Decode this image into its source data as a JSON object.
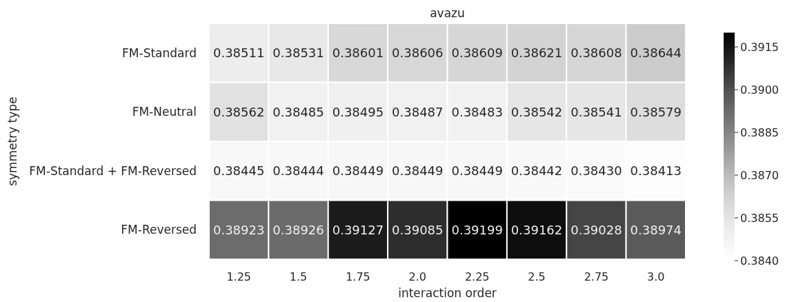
{
  "chart_data": {
    "type": "heatmap",
    "title": "avazu",
    "xlabel": "interaction order",
    "ylabel": "symmetry type",
    "categories": [
      "1.25",
      "1.5",
      "1.75",
      "2.0",
      "2.25",
      "2.5",
      "2.75",
      "3.0"
    ],
    "y_categories": [
      "FM-Standard",
      "FM-Neutral",
      "FM-Standard + FM-Reversed",
      "FM-Reversed"
    ],
    "cells": [
      [
        0.38511,
        0.38531,
        0.38601,
        0.38606,
        0.38609,
        0.38621,
        0.38608,
        0.38644
      ],
      [
        0.38562,
        0.38485,
        0.38495,
        0.38487,
        0.38483,
        0.38542,
        0.38541,
        0.38579
      ],
      [
        0.38445,
        0.38444,
        0.38449,
        0.38449,
        0.38449,
        0.38442,
        0.3843,
        0.38413
      ],
      [
        0.38923,
        0.38926,
        0.39127,
        0.39085,
        0.39199,
        0.39162,
        0.39028,
        0.38974
      ]
    ],
    "cell_labels": [
      [
        "0.38511",
        "0.38531",
        "0.38601",
        "0.38606",
        "0.38609",
        "0.38621",
        "0.38608",
        "0.38644"
      ],
      [
        "0.38562",
        "0.38485",
        "0.38495",
        "0.38487",
        "0.38483",
        "0.38542",
        "0.38541",
        "0.38579"
      ],
      [
        "0.38445",
        "0.38444",
        "0.38449",
        "0.38449",
        "0.38449",
        "0.38442",
        "0.38430",
        "0.38413"
      ],
      [
        "0.38923",
        "0.38926",
        "0.39127",
        "0.39085",
        "0.39199",
        "0.39162",
        "0.39028",
        "0.38974"
      ]
    ],
    "clim": [
      0.384,
      0.392
    ],
    "cticks": [
      {
        "value": 0.384,
        "label": "0.3840"
      },
      {
        "value": 0.3855,
        "label": "0.3855"
      },
      {
        "value": 0.387,
        "label": "0.3870"
      },
      {
        "value": 0.3885,
        "label": "0.3885"
      },
      {
        "value": 0.39,
        "label": "0.3900"
      },
      {
        "value": 0.3915,
        "label": "0.3915"
      }
    ],
    "data_labels": true
  }
}
